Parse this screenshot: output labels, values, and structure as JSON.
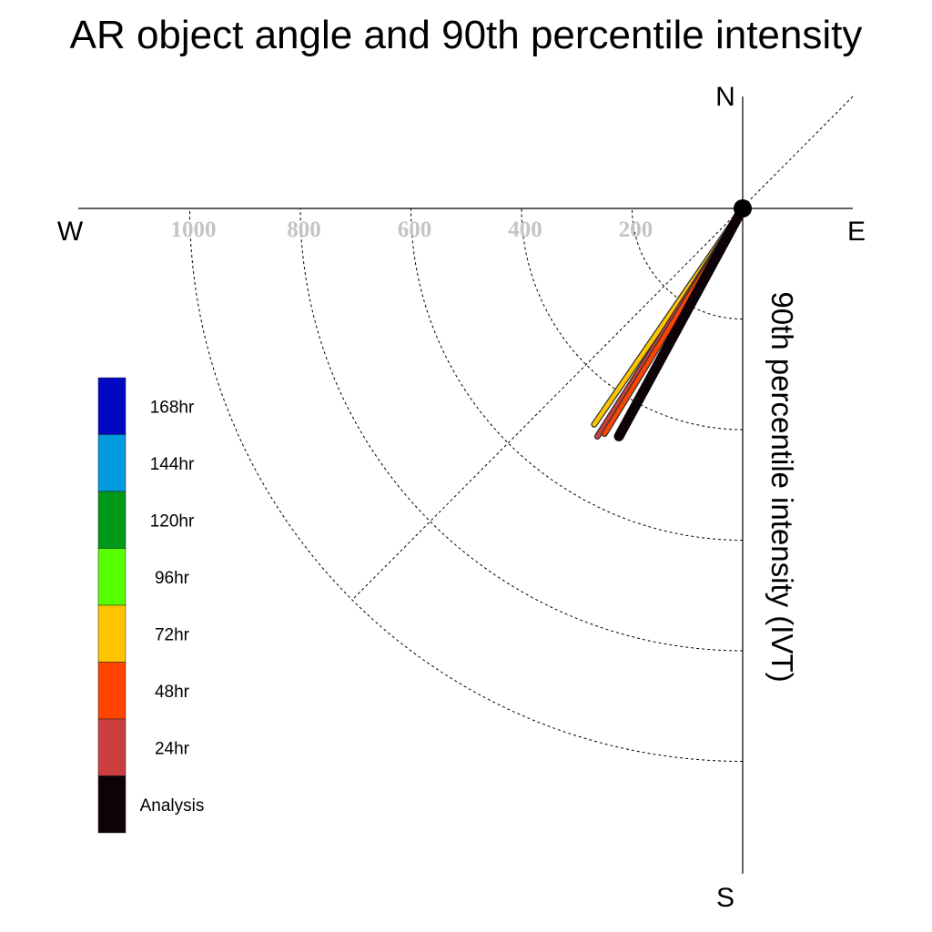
{
  "title": "AR object angle and 90th percentile intensity",
  "colors": {
    "168hr": "#0008c4",
    "144hr": "#009ade",
    "120hr": "#00991a",
    "96hr": "#55ff00",
    "72hr": "#ffc400",
    "48hr": "#ff4400",
    "24hr": "#cc3d3d",
    "Analysis": "#0d0208"
  },
  "chart_data": {
    "type": "polar-vector",
    "title": "AR object angle and 90th percentile intensity",
    "compass": {
      "north": "N",
      "south": "S",
      "east": "E",
      "west": "W"
    },
    "radial_label": "90th percentile intensity (IVT)",
    "radial_ticks": [
      200,
      400,
      600,
      800,
      1000
    ],
    "radial_max": 1200,
    "angle_convention": "degrees clockwise from north",
    "legend": [
      "168hr",
      "144hr",
      "120hr",
      "96hr",
      "72hr",
      "48hr",
      "24hr",
      "Analysis"
    ],
    "series": [
      {
        "name": "72hr",
        "angle": 214.5,
        "intensity": 474
      },
      {
        "name": "24hr",
        "angle": 212.5,
        "intensity": 489
      },
      {
        "name": "48hr",
        "angle": 211.5,
        "intensity": 478
      },
      {
        "name": "Analysis",
        "angle": 208.5,
        "intensity": 469
      }
    ]
  }
}
